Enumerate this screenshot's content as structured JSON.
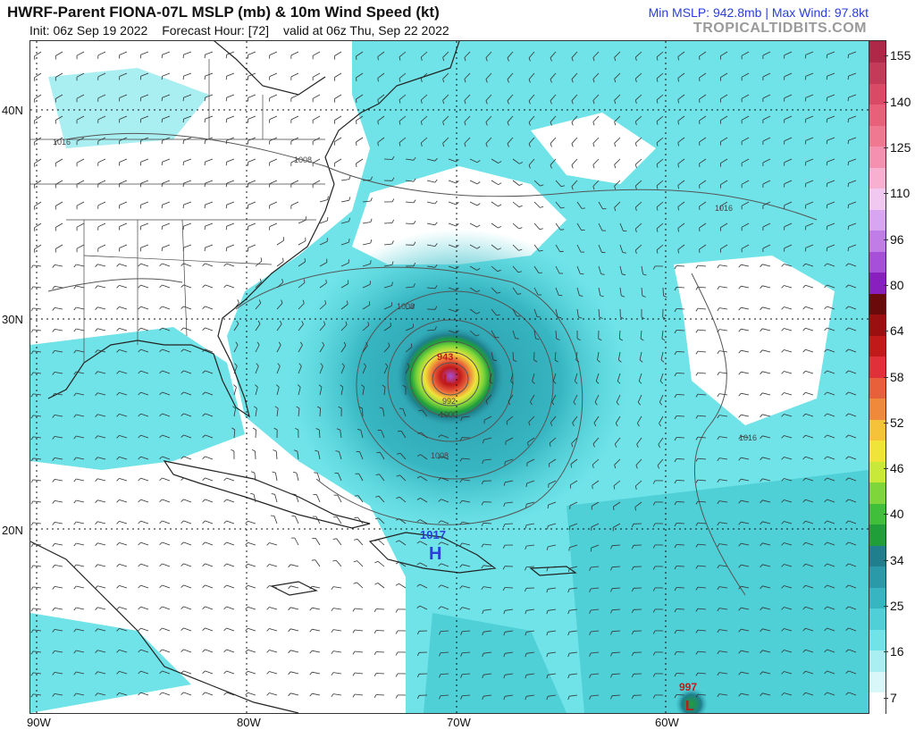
{
  "header": {
    "title": "HWRF-Parent FIONA-07L MSLP (mb) & 10m Wind Speed (kt)",
    "init": "Init: 06z Sep 19 2022",
    "forecast_hour": "Forecast Hour: [72]",
    "valid": "valid at 06z Thu, Sep 22 2022",
    "stats": "Min MSLP: 942.8mb | Max Wind: 97.8kt",
    "brand": "TROPICALTIDBITS.COM"
  },
  "axes": {
    "lat_labels": [
      "40N",
      "30N",
      "20N"
    ],
    "lon_labels": [
      "90W",
      "80W",
      "70W",
      "60W"
    ]
  },
  "map_labels": {
    "fiona_low": "L",
    "fiona_pressure": "943",
    "high_symbol": "H",
    "high_pressure": "1017",
    "south_low": "L",
    "south_pressure": "997",
    "isobar_1016_west": "1016",
    "isobar_1008_east_coast": "1008",
    "isobar_1008_north": "1008",
    "isobar_1016_ne": "1016",
    "isobar_1016_e": "1016",
    "isobar_1008_south": "1008",
    "isobar_1000": "1000",
    "isobar_992": "992"
  },
  "colorbar": {
    "labels": [
      "155",
      "140",
      "125",
      "110",
      "96",
      "80",
      "64",
      "58",
      "52",
      "46",
      "40",
      "34",
      "25",
      "16",
      "7"
    ],
    "colors": [
      "#ffffff",
      "#d9f6f8",
      "#a9eff2",
      "#6fe3e8",
      "#4fcfd6",
      "#37b6c2",
      "#2a9aa8",
      "#1f7f8c",
      "#1f9e3a",
      "#3fbf3a",
      "#7fd63a",
      "#c8e83a",
      "#f0e43a",
      "#f5c23a",
      "#f08a3a",
      "#e8603a",
      "#e0303a",
      "#c01a1a",
      "#9a0f0f",
      "#6a0a0a",
      "#8a1fc0",
      "#a64fd8",
      "#c07de8",
      "#d8a6f0",
      "#f0c8f0",
      "#f8b0d0",
      "#f590b0",
      "#f07890",
      "#e8607a",
      "#d84a66",
      "#c43a58",
      "#b02848"
    ]
  }
}
